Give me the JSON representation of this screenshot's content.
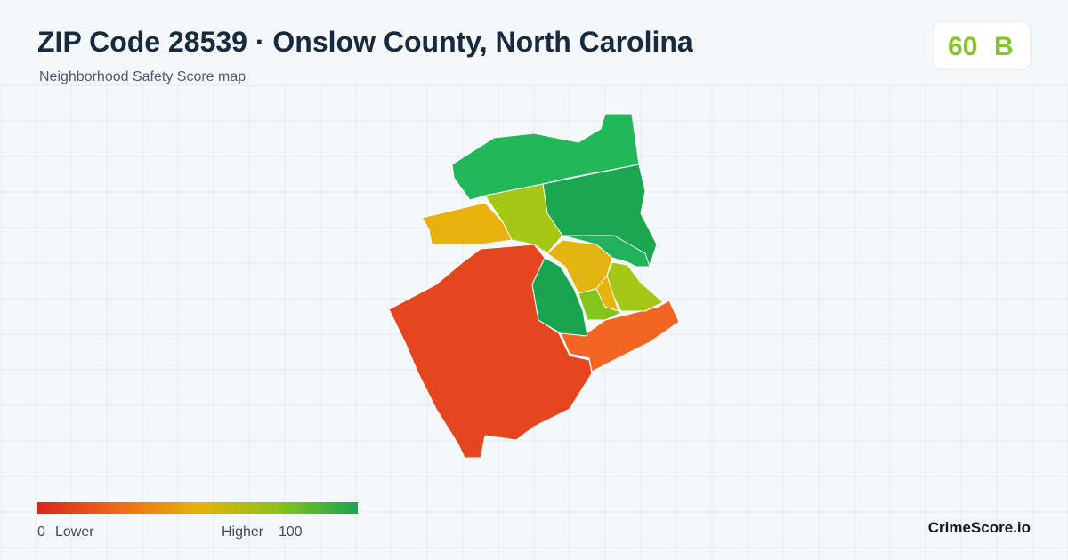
{
  "header": {
    "title": "ZIP Code 28539 · Onslow County, North Carolina",
    "subtitle": "Neighborhood Safety Score map"
  },
  "badge": {
    "score": 60,
    "grade": "B"
  },
  "legend": {
    "min": 0,
    "min_label": "Lower",
    "max_label": "Higher",
    "max": 100
  },
  "footer": {
    "brand": "CrimeScore.io"
  }
}
